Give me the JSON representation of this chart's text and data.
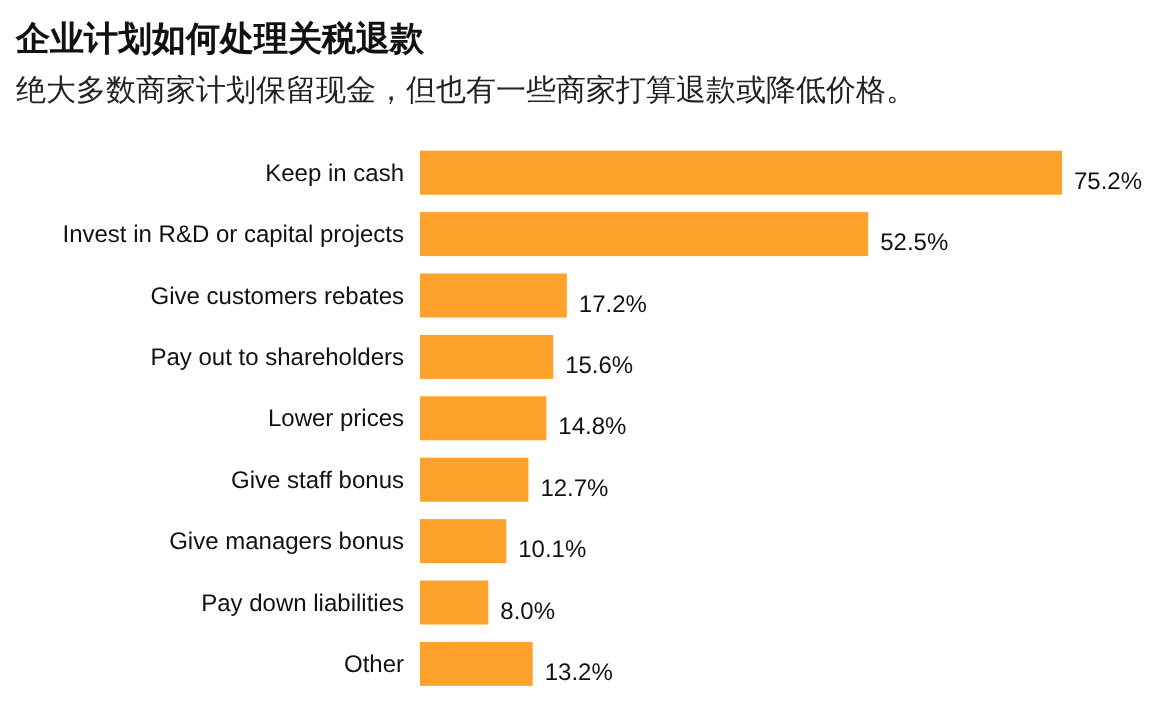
{
  "chart_data": {
    "type": "bar",
    "orientation": "horizontal",
    "title": "企业计划如何处理关税退款",
    "subtitle": "绝大多数商家计划保留现金，但也有一些商家打算退款或降低价格。",
    "categories": [
      "Keep in cash",
      "Invest in R&D or capital projects",
      "Give customers rebates",
      "Pay out to shareholders",
      "Lower prices",
      "Give staff bonus",
      "Give managers bonus",
      "Pay down liabilities",
      "Other"
    ],
    "values": [
      75.2,
      52.5,
      17.2,
      15.6,
      14.8,
      12.7,
      10.1,
      8.0,
      13.2
    ],
    "value_labels": [
      "75.2%",
      "52.5%",
      "17.2%",
      "15.6%",
      "14.8%",
      "12.7%",
      "10.1%",
      "8.0%",
      "13.2%"
    ],
    "color": "#ffa22b"
  }
}
